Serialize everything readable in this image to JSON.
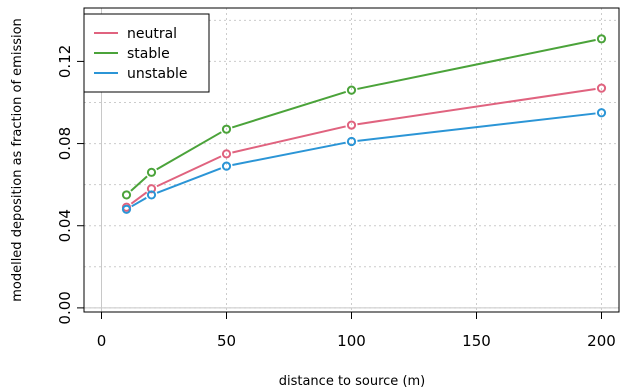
{
  "chart_data": {
    "type": "line",
    "xlabel": "distance to source (m)",
    "ylabel": "modelled deposition as fraction of emission",
    "xlim": [
      -7,
      207
    ],
    "ylim": [
      -0.002,
      0.146
    ],
    "x_ticks": [
      0,
      50,
      100,
      150,
      200
    ],
    "y_ticks": [
      0.0,
      0.04,
      0.08,
      0.12
    ],
    "y_tick_labels": [
      "0.00",
      "0.04",
      "0.08",
      "0.12"
    ],
    "grid": true,
    "legend_position": "top-left",
    "x": [
      10,
      20,
      50,
      100,
      200
    ],
    "series": [
      {
        "name": "neutral",
        "color": "#e0637f",
        "values": [
          0.049,
          0.058,
          0.075,
          0.089,
          0.107
        ]
      },
      {
        "name": "stable",
        "color": "#4ba33a",
        "values": [
          0.055,
          0.066,
          0.087,
          0.106,
          0.131
        ]
      },
      {
        "name": "unstable",
        "color": "#2b95d6",
        "values": [
          0.048,
          0.055,
          0.069,
          0.081,
          0.095
        ]
      }
    ]
  }
}
